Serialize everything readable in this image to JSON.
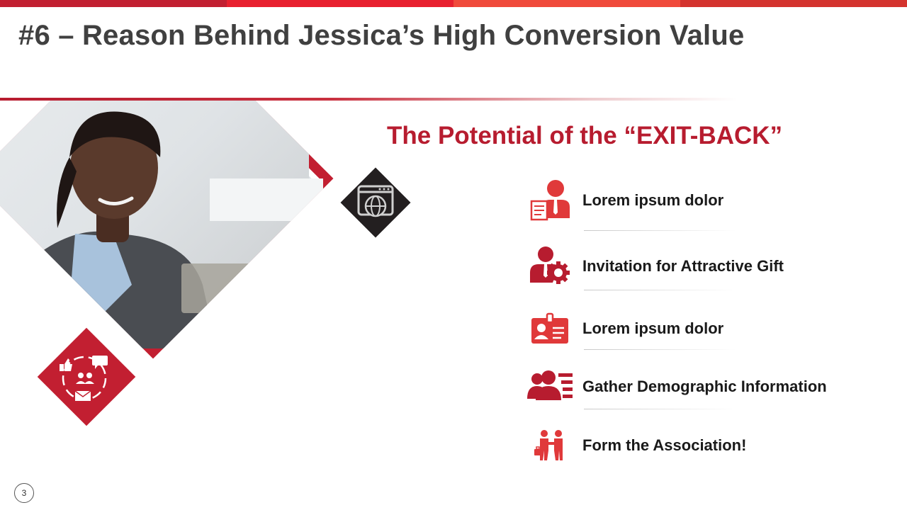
{
  "header": {
    "title": "#6 – Reason Behind Jessica’s High Conversion Value",
    "bar_colors": [
      "#c21f31",
      "#e8202f",
      "#f04a3b",
      "#d4332e"
    ]
  },
  "visual": {
    "photo": "woman-working-at-desk",
    "top_icon": "browser-globe-icon",
    "bottom_icon": "social-engagement-icon"
  },
  "section": {
    "heading": "The Potential of the “EXIT-BACK”"
  },
  "items": [
    {
      "icon": "business-person-document-icon",
      "label": "Lorem ipsum dolor"
    },
    {
      "icon": "person-gear-icon",
      "label": "Invitation for Attractive Gift"
    },
    {
      "icon": "id-card-icon",
      "label": "Lorem ipsum dolor"
    },
    {
      "icon": "people-list-icon",
      "label": "Gather Demographic Information"
    },
    {
      "icon": "handshake-icon",
      "label": "Form the Association!"
    }
  ],
  "colors": {
    "accent": "#b71c2f",
    "icon_red": "#e0393a",
    "title_gray": "#404040",
    "dark_diamond": "#231f20"
  },
  "footer": {
    "page_number": "3"
  }
}
